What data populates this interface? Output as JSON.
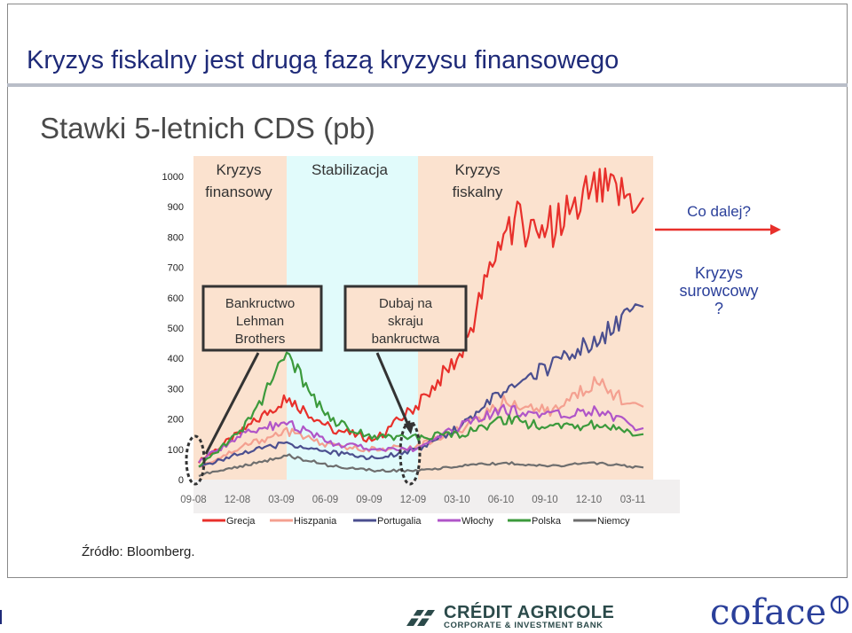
{
  "slide": {
    "title": "Kryzys fiskalny jest drugą fazą kryzysu finansowego",
    "subtitle": "Stawki 5-letnich CDS (pb)",
    "source": "Źródło: Bloomberg."
  },
  "footer": {
    "brand_left_line1": "CRÉDIT AGRICOLE",
    "brand_left_line2": "CORPORATE & INVESTMENT BANK",
    "brand_right": "coface"
  },
  "chart_data": {
    "type": "line",
    "title": "Stawki 5-letnich CDS (pb)",
    "ylim": [
      0,
      1000
    ],
    "yticks": [
      "0",
      "100",
      "200",
      "300",
      "400",
      "500",
      "600",
      "700",
      "800",
      "900",
      "1000"
    ],
    "xticks": [
      "09-08",
      "12-08",
      "03-09",
      "06-09",
      "09-09",
      "12-09",
      "03-10",
      "06-10",
      "09-10",
      "12-10",
      "03-11"
    ],
    "x": [
      "09-08",
      "12-08",
      "03-09",
      "06-09",
      "09-09",
      "12-09",
      "03-10",
      "06-10",
      "09-10",
      "12-10",
      "03-11"
    ],
    "series": [
      {
        "name": "Grecja",
        "color": "#e8302b",
        "values": [
          60,
          160,
          270,
          170,
          130,
          250,
          420,
          850,
          830,
          950,
          930
        ]
      },
      {
        "name": "Hiszpania",
        "color": "#f4a090",
        "values": [
          40,
          110,
          160,
          110,
          100,
          110,
          170,
          260,
          220,
          320,
          240
        ]
      },
      {
        "name": "Portugalia",
        "color": "#4b4f8f",
        "values": [
          40,
          90,
          120,
          90,
          70,
          100,
          180,
          300,
          380,
          450,
          570
        ]
      },
      {
        "name": "Włochy",
        "color": "#b055c8",
        "values": [
          60,
          150,
          190,
          120,
          100,
          100,
          180,
          230,
          210,
          230,
          170
        ]
      },
      {
        "name": "Polska",
        "color": "#3c9a3c",
        "values": [
          40,
          170,
          400,
          200,
          140,
          140,
          150,
          200,
          170,
          180,
          150
        ]
      },
      {
        "name": "Niemcy",
        "color": "#6e6e6e",
        "values": [
          15,
          45,
          80,
          45,
          30,
          30,
          45,
          55,
          45,
          55,
          40
        ]
      }
    ],
    "legend": [
      "Grecja",
      "Hiszpania",
      "Portugalia",
      "Włochy",
      "Polska",
      "Niemcy"
    ],
    "legend_position": "bottom",
    "annotations": {
      "phase1": "Kryzys finansowy",
      "phase2": "Stabilizacja",
      "phase3": "Kryzys fiskalny",
      "box1": [
        "Bankructwo",
        "Lehman",
        "Brothers"
      ],
      "box2": [
        "Dubaj na",
        "skraju",
        "bankructwa"
      ],
      "next": "Co dalej?",
      "commodity": [
        "Kryzys",
        "surowcowy",
        "?"
      ]
    },
    "phase_colors": {
      "financial": "#fbe2cf",
      "stabilization": "#e1fbfb",
      "fiscal": "#fbe2cf"
    }
  }
}
